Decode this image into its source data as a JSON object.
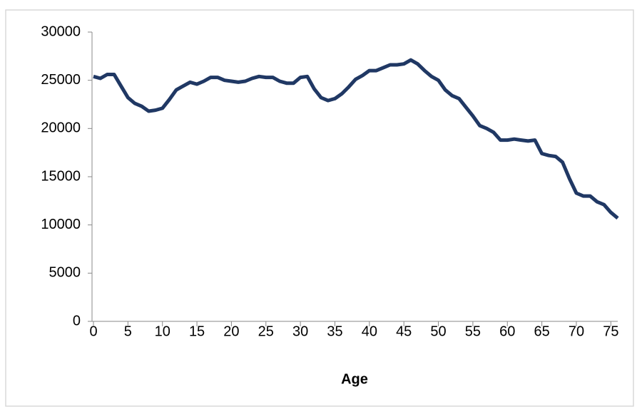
{
  "chart_data": {
    "type": "line",
    "x_label": "Age",
    "x": [
      0,
      1,
      2,
      3,
      4,
      5,
      6,
      7,
      8,
      9,
      10,
      11,
      12,
      13,
      14,
      15,
      16,
      17,
      18,
      19,
      20,
      21,
      22,
      23,
      24,
      25,
      26,
      27,
      28,
      29,
      30,
      31,
      32,
      33,
      34,
      35,
      36,
      37,
      38,
      39,
      40,
      41,
      42,
      43,
      44,
      45,
      46,
      47,
      48,
      49,
      50,
      51,
      52,
      53,
      54,
      55,
      56,
      57,
      58,
      59,
      60,
      61,
      62,
      63,
      64,
      65,
      66,
      67,
      68,
      69,
      70,
      71,
      72,
      73,
      74,
      75,
      76
    ],
    "series": [
      {
        "color": "#203864",
        "values": [
          25400,
          25200,
          25600,
          25600,
          24400,
          23200,
          22600,
          22300,
          21800,
          21900,
          22100,
          23000,
          24000,
          24400,
          24800,
          24600,
          24900,
          25300,
          25300,
          25000,
          24900,
          24800,
          24900,
          25200,
          25400,
          25300,
          25300,
          24900,
          24700,
          24700,
          25300,
          25400,
          24100,
          23200,
          22900,
          23100,
          23600,
          24300,
          25100,
          25500,
          26000,
          26000,
          26300,
          26600,
          26600,
          26700,
          27100,
          26700,
          26000,
          25400,
          25000,
          24000,
          23400,
          23100,
          22200,
          21300,
          20300,
          20000,
          19600,
          18800,
          18800,
          18900,
          18800,
          18700,
          18800,
          17400,
          17200,
          17100,
          16500,
          14800,
          13300,
          13000,
          13000,
          12400,
          12100,
          11300,
          10700
        ]
      }
    ],
    "xlim": [
      0,
      76
    ],
    "xticks": [
      0,
      5,
      10,
      15,
      20,
      25,
      30,
      35,
      40,
      45,
      50,
      55,
      60,
      65,
      70,
      75
    ],
    "ylim": [
      0,
      30000
    ],
    "yticks": [
      0,
      5000,
      10000,
      15000,
      20000,
      25000,
      30000
    ]
  }
}
